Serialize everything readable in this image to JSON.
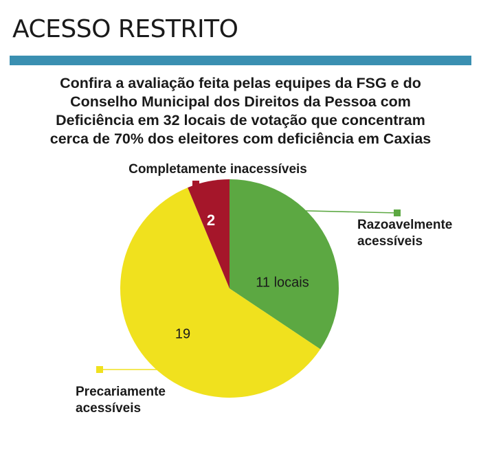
{
  "header": {
    "title": "ACESSO RESTRITO",
    "rule_color": "#3a8fb1"
  },
  "subtitle_lines": [
    "Confira a avaliação feita pelas equipes da FSG e do",
    "Conselho Municipal dos Direitos da Pessoa com",
    "Deficiência em 32 locais de votação que concentram",
    "cerca de 70% dos eleitores com deficiência em Caxias"
  ],
  "chart_data": {
    "type": "pie",
    "total": 32,
    "title": "",
    "slices": [
      {
        "name": "Razoavelmente acessíveis",
        "label_lines": [
          "Razoavelmente",
          "acessíveis"
        ],
        "value": 11,
        "value_label": "11 locais",
        "color": "#5ca842"
      },
      {
        "name": "Precariamente acessíveis",
        "label_lines": [
          "Precariamente",
          "acessíveis"
        ],
        "value": 19,
        "value_label": "19",
        "color": "#f0e11e"
      },
      {
        "name": "Completamente inacessíveis",
        "label_lines": [
          "Completamente inacessíveis"
        ],
        "value": 2,
        "value_label": "2",
        "color": "#a5162a"
      }
    ]
  }
}
